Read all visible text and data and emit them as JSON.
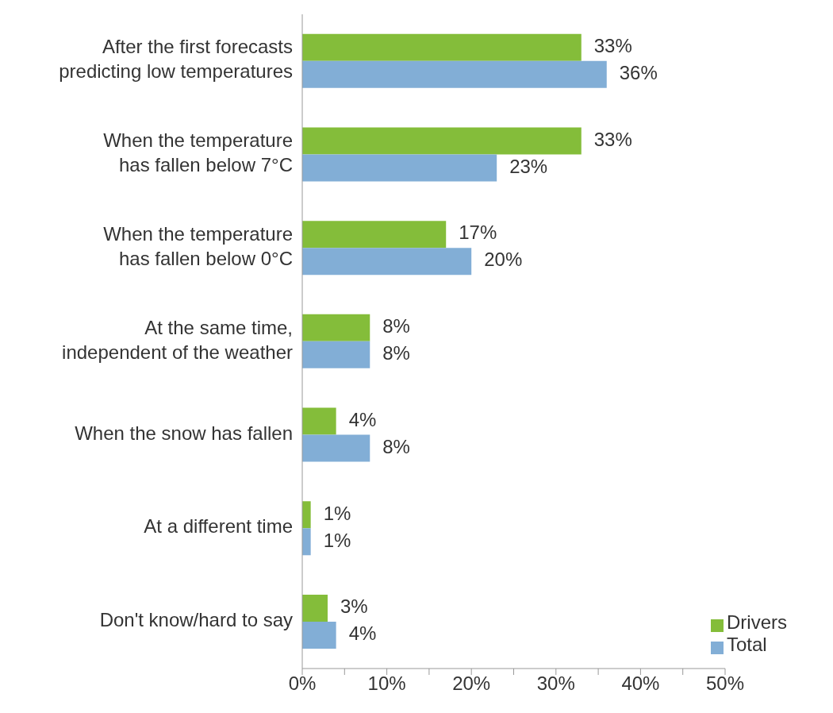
{
  "chart_data": {
    "type": "bar",
    "orientation": "horizontal",
    "categories": [
      "After the first forecasts predicting low temperatures",
      "When the temperature has fallen below 7°C",
      "When the temperature has fallen below 0°C",
      "At the same time, independent of the weather",
      "When the snow has fallen",
      "At a different time",
      "Don't know/hard to say"
    ],
    "series": [
      {
        "name": "Drivers",
        "color": "#84bd3a",
        "values": [
          33,
          33,
          17,
          8,
          4,
          1,
          3
        ],
        "value_labels": [
          "33%",
          "33%",
          "17%",
          "8%",
          "4%",
          "1%",
          "3%"
        ]
      },
      {
        "name": "Total",
        "color": "#82aed6",
        "values": [
          36,
          23,
          20,
          8,
          8,
          1,
          4
        ],
        "value_labels": [
          "36%",
          "23%",
          "20%",
          "8%",
          "8%",
          "1%",
          "4%"
        ]
      }
    ],
    "xlim": [
      0,
      50
    ],
    "xticks": [
      {
        "value": 0,
        "label": "0%"
      },
      {
        "value": 5,
        "label": null
      },
      {
        "value": 10,
        "label": "10%"
      },
      {
        "value": 15,
        "label": null
      },
      {
        "value": 20,
        "label": "20%"
      },
      {
        "value": 25,
        "label": null
      },
      {
        "value": 30,
        "label": "30%"
      },
      {
        "value": 35,
        "label": null
      },
      {
        "value": 40,
        "label": "40%"
      },
      {
        "value": 45,
        "label": null
      },
      {
        "value": 50,
        "label": "50%"
      }
    ],
    "grid": false,
    "legend": "bottom right"
  }
}
